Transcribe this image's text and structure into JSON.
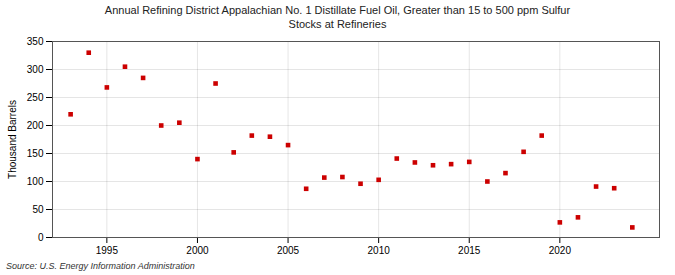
{
  "chart_data": {
    "type": "scatter",
    "title": "Annual Refining District Appalachian No. 1 Distillate Fuel Oil, Greater than 15 to 500 ppm Sulfur\nStocks at Refineries",
    "ylabel": "Thousand Barrels",
    "source": "Source: U.S. Energy Information Administration",
    "x": [
      1993,
      1994,
      1995,
      1996,
      1997,
      1998,
      1999,
      2000,
      2001,
      2002,
      2003,
      2004,
      2005,
      2006,
      2007,
      2008,
      2009,
      2010,
      2011,
      2012,
      2013,
      2014,
      2015,
      2016,
      2017,
      2018,
      2019,
      2020,
      2021,
      2022,
      2023,
      2024
    ],
    "values": [
      220,
      330,
      268,
      305,
      285,
      200,
      205,
      140,
      275,
      152,
      182,
      180,
      165,
      87,
      107,
      108,
      96,
      103,
      141,
      134,
      129,
      131,
      135,
      100,
      115,
      153,
      182,
      27,
      36,
      91,
      88,
      18
    ],
    "color": "#cc0000",
    "marker": "square",
    "xlim": [
      1992.0,
      2025.5
    ],
    "ylim": [
      0,
      350
    ],
    "xticks": [
      1995,
      2000,
      2005,
      2010,
      2015,
      2020
    ],
    "yticks": [
      0,
      50,
      100,
      150,
      200,
      250,
      300,
      350
    ],
    "grid": true
  }
}
